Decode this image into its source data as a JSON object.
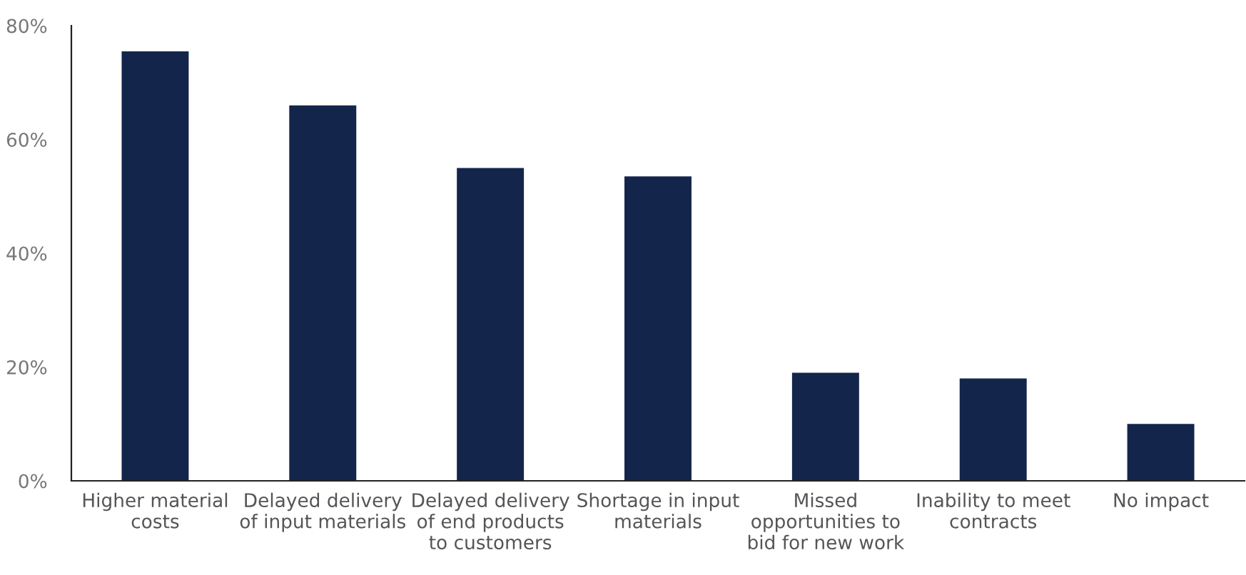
{
  "chart_data": {
    "type": "bar",
    "categories": [
      "Higher material\ncosts",
      "Delayed delivery\nof input materials",
      "Delayed delivery\nof end products\nto customers",
      "Shortage in input\nmaterials",
      "Missed\nopportunities to\nbid for new work",
      "Inability to meet\ncontracts",
      "No impact"
    ],
    "values": [
      75.5,
      66,
      55,
      53.5,
      19,
      18,
      10
    ],
    "color": "#13254a",
    "ylim": [
      0,
      80
    ],
    "yticks": [
      {
        "value": 0,
        "label": "0%"
      },
      {
        "value": 20,
        "label": "20%"
      },
      {
        "value": 40,
        "label": "40%"
      },
      {
        "value": 60,
        "label": "60%"
      },
      {
        "value": 80,
        "label": "80%"
      }
    ],
    "grid": false
  }
}
